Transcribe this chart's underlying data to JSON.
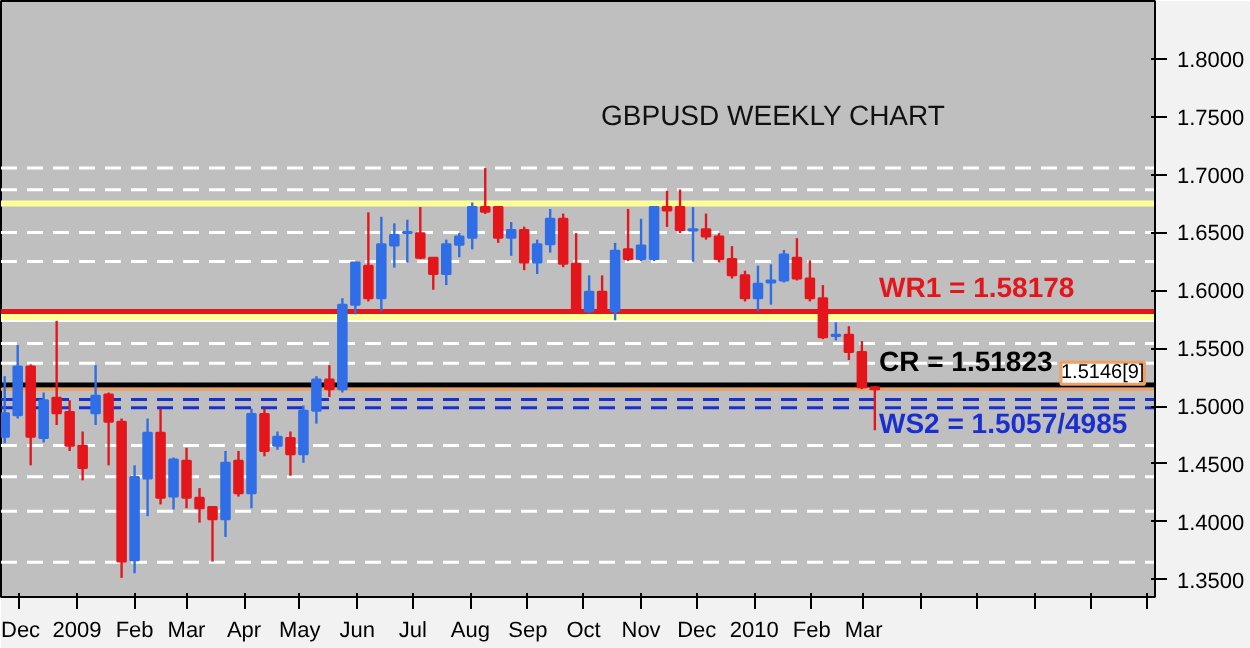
{
  "chart_data": {
    "type": "candlestick",
    "title": "GBPUSD WEEKLY CHART",
    "x": [
      "2008-11-23",
      "2008-11-30",
      "2008-12-07",
      "2008-12-14",
      "2008-12-21",
      "2008-12-28",
      "2009-01-04",
      "2009-01-11",
      "2009-01-18",
      "2009-01-25",
      "2009-02-01",
      "2009-02-08",
      "2009-02-15",
      "2009-02-22",
      "2009-03-01",
      "2009-03-08",
      "2009-03-15",
      "2009-03-22",
      "2009-03-29",
      "2009-04-05",
      "2009-04-12",
      "2009-04-19",
      "2009-04-26",
      "2009-05-03",
      "2009-05-10",
      "2009-05-17",
      "2009-05-24",
      "2009-05-31",
      "2009-06-07",
      "2009-06-14",
      "2009-06-21",
      "2009-06-28",
      "2009-07-05",
      "2009-07-12",
      "2009-07-19",
      "2009-07-26",
      "2009-08-02",
      "2009-08-09",
      "2009-08-16",
      "2009-08-23",
      "2009-08-30",
      "2009-09-06",
      "2009-09-13",
      "2009-09-20",
      "2009-09-27",
      "2009-10-04",
      "2009-10-11",
      "2009-10-18",
      "2009-10-25",
      "2009-11-01",
      "2009-11-08",
      "2009-11-15",
      "2009-11-22",
      "2009-11-29",
      "2009-12-06",
      "2009-12-13",
      "2009-12-20",
      "2009-12-27",
      "2010-01-03",
      "2010-01-10",
      "2010-01-17",
      "2010-01-24",
      "2010-01-31",
      "2010-02-07",
      "2010-02-14",
      "2010-02-21",
      "2010-02-28",
      "2010-03-07"
    ],
    "ohlc": [
      [
        1.4735,
        1.5258,
        1.4679,
        1.4937
      ],
      [
        1.492,
        1.5528,
        1.4892,
        1.5342
      ],
      [
        1.5342,
        1.536,
        1.4488,
        1.4735
      ],
      [
        1.4724,
        1.5117,
        1.4685,
        1.505
      ],
      [
        1.5072,
        1.5736,
        1.4836,
        1.4937
      ],
      [
        1.4949,
        1.505,
        1.4611,
        1.4656
      ],
      [
        1.4656,
        1.478,
        1.4358,
        1.4465
      ],
      [
        1.4937,
        1.5353,
        1.4836,
        1.5089
      ],
      [
        1.51,
        1.5117,
        1.4488,
        1.4864
      ],
      [
        1.4864,
        1.4892,
        1.3515,
        1.3656
      ],
      [
        1.3667,
        1.4488,
        1.3555,
        1.4386
      ],
      [
        1.4375,
        1.4892,
        1.4049,
        1.4769
      ],
      [
        1.4769,
        1.4977,
        1.415,
        1.4207
      ],
      [
        1.4218,
        1.4555,
        1.4106,
        1.4538
      ],
      [
        1.4527,
        1.4639,
        1.4117,
        1.4207
      ],
      [
        1.4207,
        1.4291,
        1.3993,
        1.4117
      ],
      [
        1.4128,
        1.4128,
        1.3656,
        1.4021
      ],
      [
        1.4021,
        1.4612,
        1.3869,
        1.451
      ],
      [
        1.4527,
        1.4612,
        1.4218,
        1.4246
      ],
      [
        1.4246,
        1.4977,
        1.4117,
        1.4932
      ],
      [
        1.4932,
        1.4977,
        1.4566,
        1.4611
      ],
      [
        1.4656,
        1.478,
        1.4622,
        1.4735
      ],
      [
        1.4724,
        1.478,
        1.4398,
        1.4583
      ],
      [
        1.4583,
        1.5005,
        1.451,
        1.496
      ],
      [
        1.496,
        1.5258,
        1.4848,
        1.523
      ],
      [
        1.523,
        1.5353,
        1.5078,
        1.5145
      ],
      [
        1.5145,
        1.5932,
        1.5117,
        1.5876
      ],
      [
        1.5876,
        1.6241,
        1.5792,
        1.6241
      ],
      [
        1.6213,
        1.6674,
        1.5904,
        1.5932
      ],
      [
        1.5932,
        1.6635,
        1.582,
        1.6399
      ],
      [
        1.6388,
        1.6579,
        1.6196,
        1.6478
      ],
      [
        1.6495,
        1.661,
        1.6241,
        1.6505
      ],
      [
        1.6494,
        1.6719,
        1.627,
        1.6281
      ],
      [
        1.6281,
        1.6281,
        1.6005,
        1.6141
      ],
      [
        1.6141,
        1.6438,
        1.6045,
        1.6399
      ],
      [
        1.6393,
        1.6494,
        1.6286,
        1.6466
      ],
      [
        1.6455,
        1.6759,
        1.6354,
        1.6719
      ],
      [
        1.6719,
        1.7056,
        1.666,
        1.668
      ],
      [
        1.6719,
        1.6719,
        1.641,
        1.6455
      ],
      [
        1.6455,
        1.659,
        1.6298,
        1.6522
      ],
      [
        1.6522,
        1.655,
        1.6174,
        1.6241
      ],
      [
        1.6241,
        1.6438,
        1.6141,
        1.6399
      ],
      [
        1.6399,
        1.6703,
        1.6326,
        1.6618
      ],
      [
        1.6618,
        1.6663,
        1.62,
        1.623
      ],
      [
        1.623,
        1.6494,
        1.5803,
        1.582
      ],
      [
        1.582,
        1.6129,
        1.5803,
        1.5988
      ],
      [
        1.5988,
        1.6129,
        1.5803,
        1.582
      ],
      [
        1.582,
        1.641,
        1.5741,
        1.6343
      ],
      [
        1.6354,
        1.6703,
        1.6253,
        1.627
      ],
      [
        1.627,
        1.6618,
        1.6253,
        1.6388
      ],
      [
        1.627,
        1.6719,
        1.6253,
        1.6719
      ],
      [
        1.6719,
        1.686,
        1.6548,
        1.669
      ],
      [
        1.6719,
        1.6871,
        1.6494,
        1.6522
      ],
      [
        1.6517,
        1.6719,
        1.6247,
        1.6528
      ],
      [
        1.6528,
        1.6663,
        1.6438,
        1.6466
      ],
      [
        1.6466,
        1.6494,
        1.6242,
        1.627
      ],
      [
        1.627,
        1.6382,
        1.6102,
        1.613
      ],
      [
        1.613,
        1.6169,
        1.5904,
        1.5932
      ],
      [
        1.5932,
        1.6213,
        1.582,
        1.6057
      ],
      [
        1.6068,
        1.6225,
        1.5876,
        1.6085
      ],
      [
        1.6085,
        1.6348,
        1.6068,
        1.6309
      ],
      [
        1.6281,
        1.645,
        1.6085,
        1.6102
      ],
      [
        1.6102,
        1.6259,
        1.5904,
        1.5932
      ],
      [
        1.5932,
        1.6045,
        1.5578,
        1.5595
      ],
      [
        1.5606,
        1.5724,
        1.5567,
        1.5617
      ],
      [
        1.5617,
        1.569,
        1.5398,
        1.5466
      ],
      [
        1.5466,
        1.5561,
        1.5146,
        1.5162
      ],
      [
        1.5162,
        1.5171,
        1.4791,
        1.5146
      ]
    ],
    "colors": [
      "#2f6ee6",
      "#2f6ee6",
      "#e3161c",
      "#2f6ee6",
      "#e3161c",
      "#e3161c",
      "#e3161c",
      "#2f6ee6",
      "#e3161c",
      "#e3161c",
      "#2f6ee6",
      "#2f6ee6",
      "#e3161c",
      "#2f6ee6",
      "#e3161c",
      "#e3161c",
      "#e3161c",
      "#2f6ee6",
      "#e3161c",
      "#2f6ee6",
      "#e3161c",
      "#2f6ee6",
      "#e3161c",
      "#2f6ee6",
      "#2f6ee6",
      "#e3161c",
      "#2f6ee6",
      "#2f6ee6",
      "#e3161c",
      "#2f6ee6",
      "#2f6ee6",
      "#2f6ee6",
      "#e3161c",
      "#e3161c",
      "#2f6ee6",
      "#2f6ee6",
      "#2f6ee6",
      "#e3161c",
      "#e3161c",
      "#2f6ee6",
      "#e3161c",
      "#2f6ee6",
      "#2f6ee6",
      "#e3161c",
      "#e3161c",
      "#2f6ee6",
      "#e3161c",
      "#2f6ee6",
      "#e3161c",
      "#2f6ee6",
      "#2f6ee6",
      "#e3161c",
      "#e3161c",
      "#2f6ee6",
      "#e3161c",
      "#e3161c",
      "#e3161c",
      "#e3161c",
      "#2f6ee6",
      "#2f6ee6",
      "#2f6ee6",
      "#e3161c",
      "#e3161c",
      "#e3161c",
      "#2f6ee6",
      "#e3161c",
      "#e3161c",
      "#e3161c"
    ],
    "xlim": [
      "2008-11-21",
      "2010-08-05"
    ],
    "xticks": [
      {
        "value": "2008-12-01",
        "label": "Dec"
      },
      {
        "value": "2009-01-01",
        "label": "2009"
      },
      {
        "value": "2009-02-01",
        "label": "Feb"
      },
      {
        "value": "2009-03-01",
        "label": "Mar"
      },
      {
        "value": "2009-04-01",
        "label": "Apr"
      },
      {
        "value": "2009-05-01",
        "label": "May"
      },
      {
        "value": "2009-06-01",
        "label": "Jun"
      },
      {
        "value": "2009-07-01",
        "label": "Jul"
      },
      {
        "value": "2009-08-01",
        "label": "Aug"
      },
      {
        "value": "2009-09-01",
        "label": "Sep"
      },
      {
        "value": "2009-10-01",
        "label": "Oct"
      },
      {
        "value": "2009-11-01",
        "label": "Nov"
      },
      {
        "value": "2009-12-01",
        "label": "Dec"
      },
      {
        "value": "2010-01-01",
        "label": "2010"
      },
      {
        "value": "2010-02-01",
        "label": "Feb"
      },
      {
        "value": "2010-03-01",
        "label": "Mar"
      },
      {
        "value": "2010-04-01",
        "label": null
      },
      {
        "value": "2010-05-01",
        "label": null
      },
      {
        "value": "2010-06-01",
        "label": null
      },
      {
        "value": "2010-07-01",
        "label": null
      },
      {
        "value": "2010-08-01",
        "label": null
      }
    ],
    "ylim": [
      1.335,
      1.85
    ],
    "yticks": [
      {
        "value": 1.35,
        "label": "1.3500"
      },
      {
        "value": 1.4,
        "label": "1.4000"
      },
      {
        "value": 1.45,
        "label": "1.4500"
      },
      {
        "value": 1.5,
        "label": "1.5000"
      },
      {
        "value": 1.55,
        "label": "1.5500"
      },
      {
        "value": 1.6,
        "label": "1.6000"
      },
      {
        "value": 1.65,
        "label": "1.6500"
      },
      {
        "value": 1.7,
        "label": "1.7000"
      },
      {
        "value": 1.75,
        "label": "1.7500"
      },
      {
        "value": 1.8,
        "label": "1.8000"
      }
    ],
    "grid": false,
    "ref_lines": [
      {
        "axis": "y",
        "value": 1.7056,
        "color": "#ffffff",
        "line_style": "dashed"
      },
      {
        "axis": "y",
        "value": 1.687,
        "color": "#ffffff",
        "line_style": "dashed"
      },
      {
        "axis": "y",
        "value": 1.65,
        "color": "#ffffff",
        "line_style": "dashed"
      },
      {
        "axis": "y",
        "value": 1.625,
        "color": "#ffffff",
        "line_style": "dashed"
      },
      {
        "axis": "y",
        "value": 1.574,
        "color": "#ffffff",
        "line_style": "solid"
      },
      {
        "axis": "y",
        "value": 1.554,
        "color": "#ffffff",
        "line_style": "dashed"
      },
      {
        "axis": "y",
        "value": 1.537,
        "color": "#ffffff",
        "line_style": "dashed"
      },
      {
        "axis": "y",
        "value": 1.466,
        "color": "#ffffff",
        "line_style": "dashed"
      },
      {
        "axis": "y",
        "value": 1.439,
        "color": "#ffffff",
        "line_style": "dashed"
      },
      {
        "axis": "y",
        "value": 1.409,
        "color": "#ffffff",
        "line_style": "dashed"
      },
      {
        "axis": "y",
        "value": 1.365,
        "color": "#ffffff",
        "line_style": "dashed"
      },
      {
        "axis": "y",
        "value": 1.675,
        "color": "#ffff99",
        "line_style": "solid"
      },
      {
        "axis": "y",
        "value": 1.577,
        "color": "#ffff99",
        "line_style": "solid"
      },
      {
        "axis": "y",
        "value": 1.58178,
        "label": "WR1 = 1.58178",
        "color": "#e3161c",
        "line_style": "solid"
      },
      {
        "axis": "y",
        "value": 1.51823,
        "label": "CR = 1.51823",
        "color": "#000000",
        "line_style": "solid"
      },
      {
        "axis": "y",
        "value": 1.5146,
        "label": "1.5146[9]",
        "color": "#f0a060",
        "line_style": "solid"
      },
      {
        "axis": "y",
        "value": 1.5057,
        "label": "WS2 = 1.5057/4985",
        "color": "#1a2fd0",
        "line_style": "dashed"
      },
      {
        "axis": "y",
        "value": 1.4985,
        "color": "#1a2fd0",
        "line_style": "dashed"
      }
    ]
  }
}
